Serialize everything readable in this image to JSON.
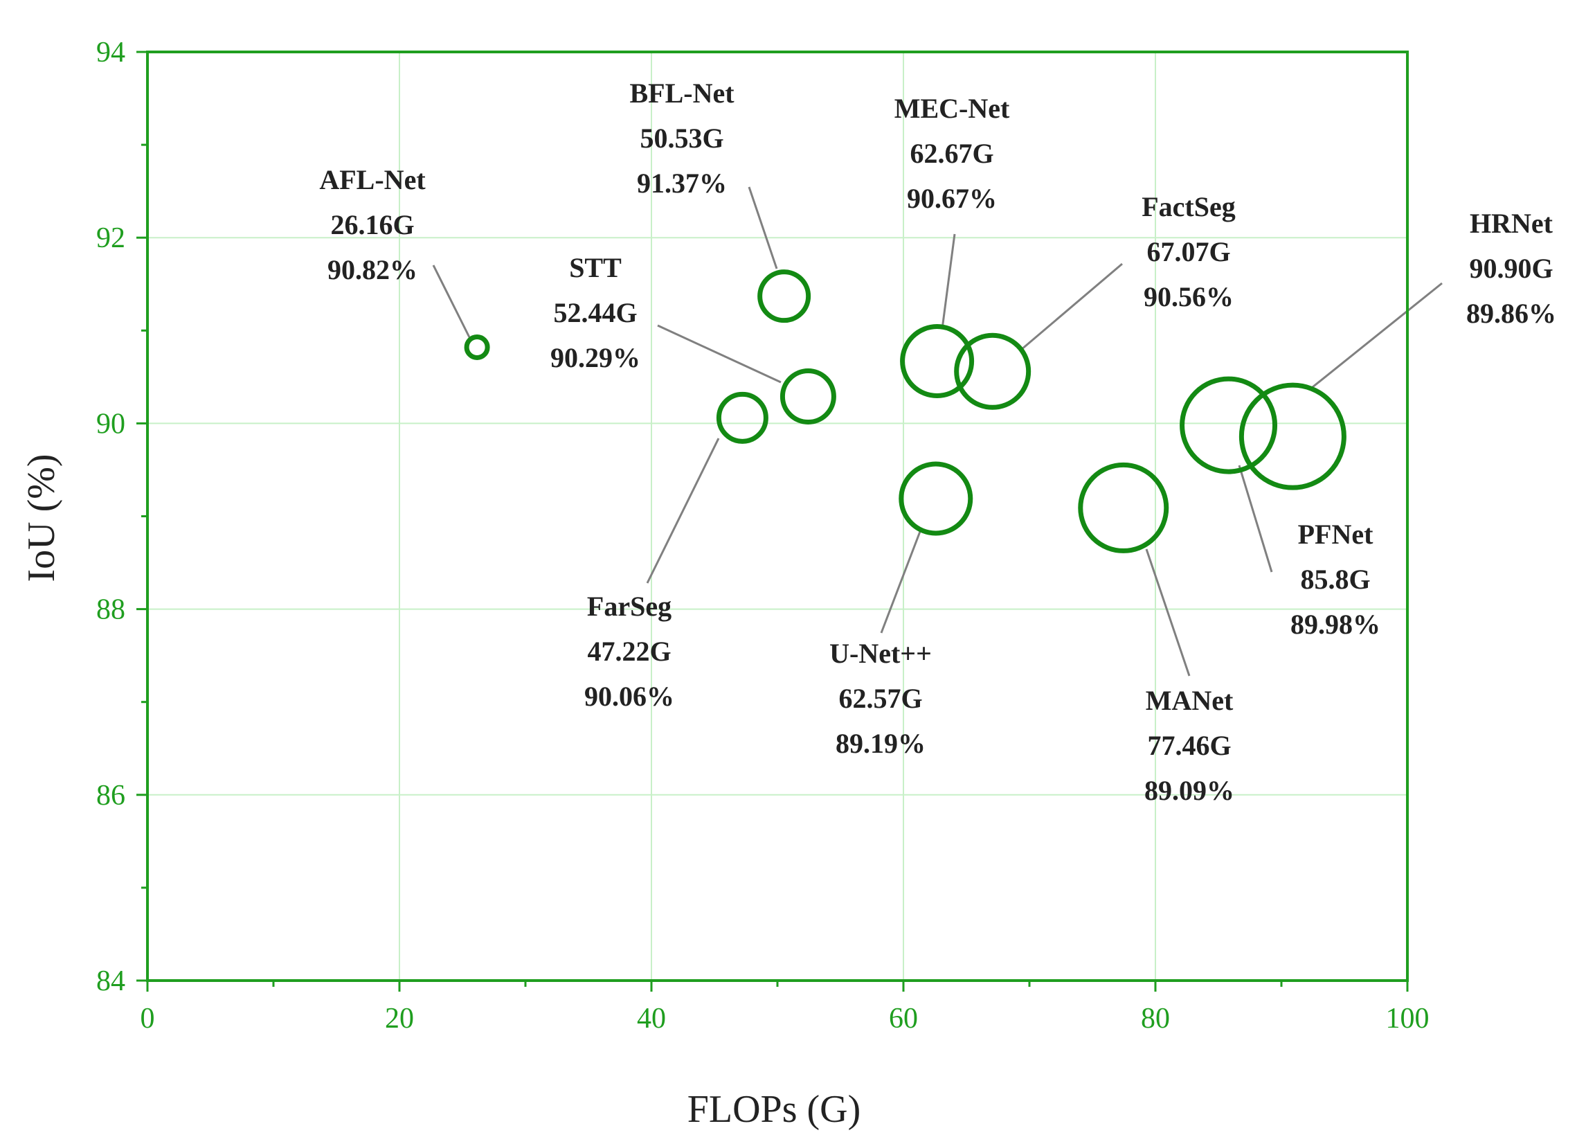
{
  "chart_data": {
    "type": "scatter",
    "title": "",
    "xlabel": "FLOPs (G)",
    "ylabel": "IoU (%)",
    "xlim": [
      0,
      100
    ],
    "ylim": [
      84,
      94
    ],
    "xticks": [
      0,
      20,
      40,
      60,
      80,
      100
    ],
    "yticks": [
      84,
      86,
      88,
      90,
      92,
      94
    ],
    "grid": true,
    "colors": {
      "marker": "#138a13",
      "axis": "#1f9e1f",
      "grid": "#c8f0c8",
      "leader": "#808080"
    },
    "series": [
      {
        "name": "AFL-Net",
        "flops": 26.16,
        "iou": 90.82,
        "label_lines": [
          "AFL-Net",
          "26.16G",
          "90.82%"
        ]
      },
      {
        "name": "BFL-Net",
        "flops": 50.53,
        "iou": 91.37,
        "label_lines": [
          "BFL-Net",
          "50.53G",
          "91.37%"
        ]
      },
      {
        "name": "STT",
        "flops": 52.44,
        "iou": 90.29,
        "label_lines": [
          "STT",
          "52.44G",
          "90.29%"
        ]
      },
      {
        "name": "FarSeg",
        "flops": 47.22,
        "iou": 90.06,
        "label_lines": [
          "FarSeg",
          "47.22G",
          "90.06%"
        ]
      },
      {
        "name": "MEC-Net",
        "flops": 62.67,
        "iou": 90.67,
        "label_lines": [
          "MEC-Net",
          "62.67G",
          "90.67%"
        ]
      },
      {
        "name": "U-Net++",
        "flops": 62.57,
        "iou": 89.19,
        "label_lines": [
          "U-Net++",
          "62.57G",
          "89.19%"
        ]
      },
      {
        "name": "FactSeg",
        "flops": 67.07,
        "iou": 90.56,
        "label_lines": [
          "FactSeg",
          "67.07G",
          "90.56%"
        ]
      },
      {
        "name": "MANet",
        "flops": 77.46,
        "iou": 89.09,
        "label_lines": [
          "MANet",
          "77.46G",
          "89.09%"
        ]
      },
      {
        "name": "PFNet",
        "flops": 85.8,
        "iou": 89.98,
        "label_lines": [
          "PFNet",
          "85.8G",
          "89.98%"
        ]
      },
      {
        "name": "HRNet",
        "flops": 90.9,
        "iou": 89.86,
        "label_lines": [
          "HRNet",
          "90.90G",
          "89.86%"
        ]
      }
    ]
  }
}
